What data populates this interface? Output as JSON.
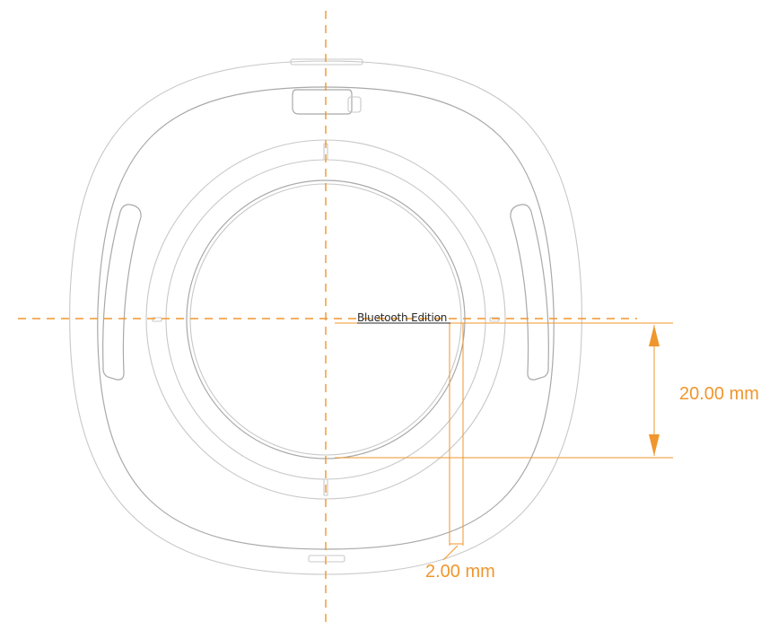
{
  "label": {
    "text": "Bluetooth Edition"
  },
  "dimensions": {
    "vertical": {
      "text": "20.00 mm"
    },
    "horizontal": {
      "text": "2.00 mm"
    }
  },
  "colors": {
    "accent": "#f0962e",
    "outline": "#c8c8c8",
    "outline_dark": "#a9a9a9"
  }
}
